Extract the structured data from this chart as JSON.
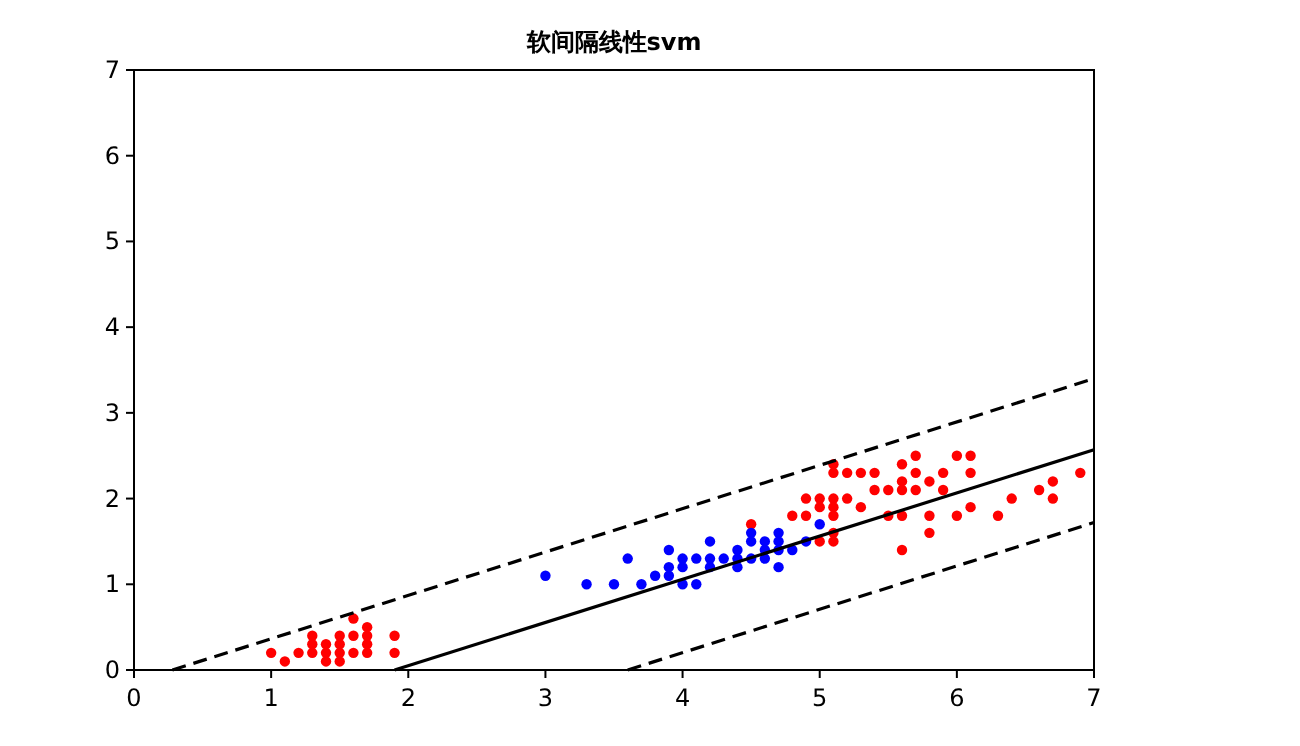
{
  "chart_data": {
    "type": "scatter",
    "title": "软间隔线性svm",
    "xlim": [
      0,
      7
    ],
    "ylim": [
      0,
      7
    ],
    "xticks": [
      0,
      1,
      2,
      3,
      4,
      5,
      6,
      7
    ],
    "yticks": [
      0,
      1,
      2,
      3,
      4,
      5,
      6,
      7
    ],
    "grid": false,
    "series": [
      {
        "marker": "circle",
        "color": "#ff0000",
        "x": [
          1.0,
          1.1,
          1.2,
          1.3,
          1.3,
          1.3,
          1.4,
          1.4,
          1.4,
          1.5,
          1.5,
          1.5,
          1.5,
          1.6,
          1.6,
          1.6,
          1.7,
          1.7,
          1.7,
          1.7,
          1.9,
          1.9,
          4.5,
          4.8,
          4.9,
          4.9,
          5.0,
          5.0,
          5.0,
          5.1,
          5.1,
          5.1,
          5.1,
          5.1,
          5.1,
          5.1,
          5.2,
          5.2,
          5.3,
          5.3,
          5.4,
          5.4,
          5.5,
          5.5,
          5.6,
          5.6,
          5.6,
          5.6,
          5.6,
          5.7,
          5.7,
          5.7,
          5.8,
          5.8,
          5.8,
          5.9,
          5.9,
          6.0,
          6.0,
          6.1,
          6.1,
          6.1,
          6.3,
          6.4,
          6.6,
          6.7,
          6.7,
          6.9
        ],
        "values": [
          0.2,
          0.1,
          0.2,
          0.2,
          0.3,
          0.4,
          0.1,
          0.2,
          0.3,
          0.1,
          0.2,
          0.3,
          0.4,
          0.2,
          0.4,
          0.6,
          0.2,
          0.3,
          0.4,
          0.5,
          0.2,
          0.4,
          1.7,
          1.8,
          1.8,
          2.0,
          1.5,
          1.9,
          2.0,
          1.5,
          1.6,
          1.8,
          1.9,
          2.0,
          2.3,
          2.4,
          2.0,
          2.3,
          1.9,
          2.3,
          2.1,
          2.3,
          1.8,
          2.1,
          1.4,
          1.8,
          2.1,
          2.2,
          2.4,
          2.1,
          2.3,
          2.5,
          1.6,
          1.8,
          2.2,
          2.1,
          2.3,
          1.8,
          2.5,
          1.9,
          2.3,
          2.5,
          1.8,
          2.0,
          2.1,
          2.0,
          2.2,
          2.3
        ]
      },
      {
        "marker": "circle",
        "color": "#0000ff",
        "x": [
          3.0,
          3.3,
          3.5,
          3.6,
          3.7,
          3.8,
          3.9,
          3.9,
          3.9,
          4.0,
          4.0,
          4.0,
          4.1,
          4.1,
          4.2,
          4.2,
          4.2,
          4.3,
          4.4,
          4.4,
          4.4,
          4.5,
          4.5,
          4.5,
          4.6,
          4.6,
          4.6,
          4.7,
          4.7,
          4.7,
          4.7,
          4.8,
          4.9,
          5.0
        ],
        "values": [
          1.1,
          1.0,
          1.0,
          1.3,
          1.0,
          1.1,
          1.1,
          1.2,
          1.4,
          1.0,
          1.2,
          1.3,
          1.0,
          1.3,
          1.2,
          1.3,
          1.5,
          1.3,
          1.2,
          1.3,
          1.4,
          1.3,
          1.5,
          1.6,
          1.3,
          1.4,
          1.5,
          1.2,
          1.4,
          1.5,
          1.6,
          1.4,
          1.5,
          1.7
        ]
      },
      {
        "type": "line",
        "color": "#000000",
        "line_style": "solid",
        "x": [
          1.9,
          7
        ],
        "values": [
          0,
          2.57
        ]
      },
      {
        "type": "line",
        "color": "#000000",
        "line_style": "dashed",
        "x": [
          0.28,
          7
        ],
        "values": [
          0,
          3.4
        ]
      },
      {
        "type": "line",
        "color": "#000000",
        "line_style": "dashed",
        "x": [
          3.6,
          7
        ],
        "values": [
          0,
          1.72
        ]
      }
    ]
  }
}
